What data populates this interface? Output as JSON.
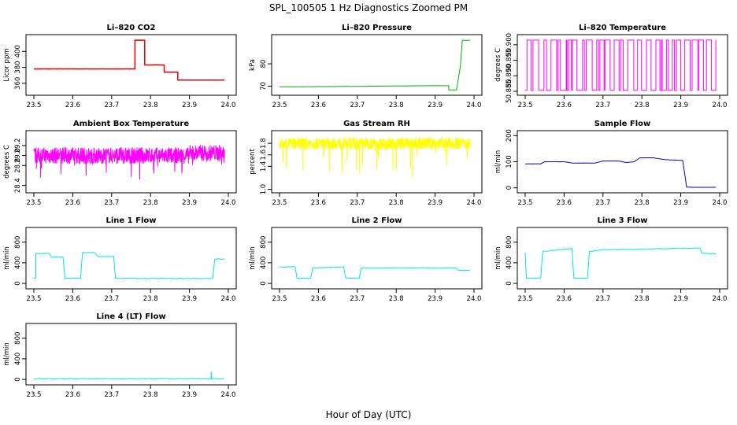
{
  "figure": {
    "title": "SPL_100505  1 Hz Diagnostics Zoomed PM",
    "xlabel": "Hour of Day (UTC)"
  },
  "chart_data": [
    {
      "type": "line",
      "title": "Li–820 CO2",
      "ylabel": "Licor ppm",
      "color": "#e00000",
      "xlim": [
        23.5,
        24.0
      ],
      "ylim": [
        348,
        418
      ],
      "xticks": [
        "23.5",
        "23.6",
        "23.7",
        "23.8",
        "23.9",
        "24.0"
      ],
      "yticks": [
        "360",
        "380",
        "400"
      ],
      "series": [
        {
          "x": [
            23.5,
            23.76,
            23.76,
            23.785,
            23.785,
            23.835,
            23.835,
            23.87,
            23.87,
            23.99
          ],
          "y": [
            378,
            378,
            414,
            414,
            383,
            383,
            374,
            374,
            364,
            364
          ]
        }
      ]
    },
    {
      "type": "line",
      "title": "Li–820 Pressure",
      "ylabel": "kPa",
      "color": "#00b000",
      "xlim": [
        23.5,
        24.0
      ],
      "ylim": [
        67,
        92
      ],
      "xticks": [
        "23.5",
        "23.6",
        "23.7",
        "23.8",
        "23.9",
        "24.0"
      ],
      "yticks": [
        "70",
        "80"
      ],
      "series": [
        {
          "x": [
            23.5,
            23.7,
            23.8,
            23.9,
            23.935,
            23.935,
            23.955,
            23.965,
            23.97,
            23.99
          ],
          "y": [
            69.7,
            69.9,
            70.1,
            70.2,
            70.2,
            68.3,
            68.3,
            79,
            90.5,
            90.5
          ]
        }
      ]
    },
    {
      "type": "line",
      "title": "Li–820 Temperature",
      "ylabel": "degrees C",
      "color": "#ff00ff",
      "xlim": [
        23.5,
        24.0
      ],
      "ylim": [
        50.8845,
        50.9025
      ],
      "xticks": [
        "23.5",
        "23.6",
        "23.7",
        "23.8",
        "23.9",
        "24.0"
      ],
      "yticks": [
        "50.885",
        "50.890",
        "50.895",
        "50.900"
      ],
      "series": [
        {
          "x": [
            23.5,
            23.99
          ],
          "y": [
            50.8853,
            50.9015
          ]
        }
      ]
    },
    {
      "type": "line",
      "title": "Ambient Box Temperature",
      "ylabel": "degrees C",
      "color": "#ff00ff",
      "xlim": [
        23.5,
        24.0
      ],
      "ylim": [
        28.3,
        29.45
      ],
      "xticks": [
        "23.5",
        "23.6",
        "23.7",
        "23.8",
        "23.9",
        "24.0"
      ],
      "yticks": [
        "28.4",
        "28.8",
        "29.0",
        "29.2"
      ],
      "series": [
        {
          "x": [
            23.5,
            23.6,
            23.7,
            23.8,
            23.9,
            23.99
          ],
          "y": [
            29.0,
            29.0,
            29.0,
            29.0,
            29.0,
            29.1
          ]
        }
      ]
    },
    {
      "type": "line",
      "title": "Gas Stream RH",
      "ylabel": "percent",
      "color": "#ffff00",
      "xlim": [
        23.5,
        24.0
      ],
      "ylim": [
        0.98,
        1.98
      ],
      "xticks": [
        "23.5",
        "23.6",
        "23.7",
        "23.8",
        "23.9",
        "24.0"
      ],
      "yticks": [
        "1.0",
        "1.4",
        "1.6",
        "1.8"
      ],
      "series": [
        {
          "x": [
            23.5,
            23.99
          ],
          "y": [
            1.8,
            1.8
          ]
        }
      ]
    },
    {
      "type": "line",
      "title": "Sample Flow",
      "ylabel": "ml/min",
      "color": "#0000cc",
      "xlim": [
        23.5,
        24.0
      ],
      "ylim": [
        -10,
        210
      ],
      "xticks": [
        "23.5",
        "23.6",
        "23.7",
        "23.8",
        "23.9",
        "24.0"
      ],
      "yticks": [
        "0",
        "100",
        "200"
      ],
      "series": [
        {
          "x": [
            23.5,
            23.54,
            23.55,
            23.6,
            23.62,
            23.68,
            23.7,
            23.74,
            23.76,
            23.78,
            23.795,
            23.83,
            23.86,
            23.905,
            23.915,
            23.93,
            23.99
          ],
          "y": [
            92,
            92,
            100,
            100,
            95,
            95,
            103,
            103,
            97,
            100,
            115,
            115,
            108,
            105,
            3,
            2,
            2
          ]
        }
      ]
    },
    {
      "type": "line",
      "title": "Line 1 Flow",
      "ylabel": "ml/min",
      "color": "#00e5ee",
      "xlim": [
        23.5,
        24.0
      ],
      "ylim": [
        -60,
        1040
      ],
      "xticks": [
        "23.5",
        "23.6",
        "23.7",
        "23.8",
        "23.9",
        "24.0"
      ],
      "yticks": [
        "0",
        "400",
        "800"
      ],
      "series": [
        {
          "x": [
            23.5,
            23.505,
            23.505,
            23.54,
            23.545,
            23.575,
            23.58,
            23.62,
            23.625,
            23.655,
            23.665,
            23.705,
            23.71,
            23.76,
            23.955,
            23.96,
            23.965,
            23.99
          ],
          "y": [
            100,
            100,
            580,
            580,
            510,
            510,
            100,
            100,
            600,
            600,
            520,
            520,
            100,
            95,
            95,
            100,
            470,
            470
          ]
        }
      ]
    },
    {
      "type": "line",
      "title": "Line 2 Flow",
      "ylabel": "ml/min",
      "color": "#00e5ee",
      "xlim": [
        23.5,
        24.0
      ],
      "ylim": [
        -60,
        1040
      ],
      "xticks": [
        "23.5",
        "23.6",
        "23.7",
        "23.8",
        "23.9",
        "24.0"
      ],
      "yticks": [
        "0",
        "400",
        "800"
      ],
      "series": [
        {
          "x": [
            23.5,
            23.54,
            23.545,
            23.58,
            23.585,
            23.665,
            23.67,
            23.705,
            23.71,
            23.955,
            23.96,
            23.99
          ],
          "y": [
            320,
            320,
            100,
            100,
            300,
            320,
            100,
            100,
            300,
            300,
            250,
            250
          ]
        }
      ]
    },
    {
      "type": "line",
      "title": "Line 3 Flow",
      "ylabel": "ml/min",
      "color": "#00e5ee",
      "xlim": [
        23.5,
        24.0
      ],
      "ylim": [
        -60,
        1040
      ],
      "xticks": [
        "23.5",
        "23.6",
        "23.7",
        "23.8",
        "23.9",
        "24.0"
      ],
      "yticks": [
        "0",
        "400",
        "800"
      ],
      "series": [
        {
          "x": [
            23.5,
            23.503,
            23.506,
            23.54,
            23.545,
            23.62,
            23.625,
            23.66,
            23.665,
            23.7,
            23.9,
            23.95,
            23.955,
            23.99
          ],
          "y": [
            600,
            100,
            100,
            100,
            620,
            680,
            100,
            100,
            620,
            650,
            680,
            680,
            580,
            580
          ]
        }
      ]
    },
    {
      "type": "line",
      "title": "Line 4 (LT) Flow",
      "ylabel": "ml/min",
      "color": "#00e5ee",
      "xlim": [
        23.5,
        24.0
      ],
      "ylim": [
        -60,
        1040
      ],
      "xticks": [
        "23.5",
        "23.6",
        "23.7",
        "23.8",
        "23.9",
        "24.0"
      ],
      "yticks": [
        "0",
        "400",
        "800"
      ],
      "series": [
        {
          "x": [
            23.5,
            23.955,
            23.956,
            23.957,
            23.96,
            23.99
          ],
          "y": [
            15,
            15,
            140,
            15,
            15,
            15
          ]
        }
      ]
    }
  ]
}
